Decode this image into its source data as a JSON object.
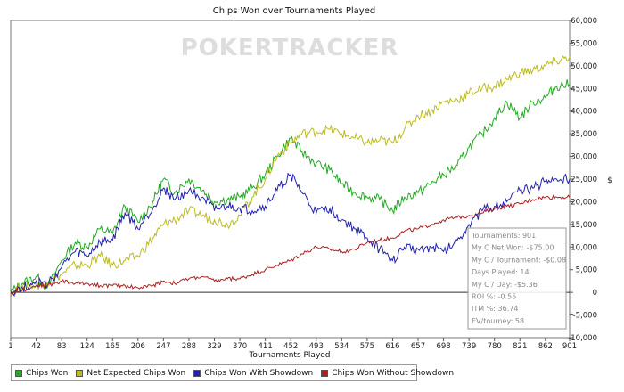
{
  "chart_data": {
    "type": "line",
    "title": "Chips Won over Tournaments Played",
    "xlabel": "Tournaments Played",
    "ylabel": "$",
    "watermark": "POKERTRACKER",
    "x_ticks": [
      1,
      42,
      83,
      124,
      165,
      206,
      247,
      288,
      329,
      370,
      411,
      452,
      493,
      534,
      575,
      616,
      657,
      698,
      739,
      780,
      821,
      862,
      901
    ],
    "xlim": [
      1,
      901
    ],
    "ylim": [
      -10000,
      60000
    ],
    "y_ticks": [
      -10000,
      -5000,
      0,
      5000,
      10000,
      15000,
      20000,
      25000,
      30000,
      35000,
      40000,
      45000,
      50000,
      55000,
      60000
    ],
    "y_tick_labels": [
      "-10,000",
      "-5,000",
      "0",
      "5,000",
      "10,000",
      "15,000",
      "20,000",
      "25,000",
      "30,000",
      "35,000",
      "40,000",
      "45,000",
      "50,000",
      "55,000",
      "60,000"
    ],
    "grid": false,
    "legend_position": "bottom-left",
    "series": [
      {
        "name": "Chips Won",
        "color": "#22aa22",
        "points": [
          [
            1,
            0
          ],
          [
            20,
            2000
          ],
          [
            42,
            3500
          ],
          [
            60,
            1000
          ],
          [
            83,
            7000
          ],
          [
            105,
            11000
          ],
          [
            124,
            10000
          ],
          [
            145,
            14000
          ],
          [
            165,
            13000
          ],
          [
            185,
            19000
          ],
          [
            206,
            15500
          ],
          [
            230,
            20000
          ],
          [
            247,
            25000
          ],
          [
            265,
            22000
          ],
          [
            288,
            25000
          ],
          [
            310,
            22500
          ],
          [
            329,
            20000
          ],
          [
            350,
            20500
          ],
          [
            370,
            21000
          ],
          [
            390,
            23000
          ],
          [
            411,
            26000
          ],
          [
            430,
            30000
          ],
          [
            452,
            34000
          ],
          [
            470,
            31000
          ],
          [
            493,
            28500
          ],
          [
            515,
            27000
          ],
          [
            534,
            24000
          ],
          [
            555,
            22000
          ],
          [
            575,
            21000
          ],
          [
            595,
            20500
          ],
          [
            616,
            18000
          ],
          [
            635,
            21000
          ],
          [
            657,
            22000
          ],
          [
            678,
            24000
          ],
          [
            698,
            26000
          ],
          [
            720,
            28000
          ],
          [
            739,
            32000
          ],
          [
            760,
            35000
          ],
          [
            780,
            38500
          ],
          [
            800,
            42000
          ],
          [
            821,
            38500
          ],
          [
            842,
            42000
          ],
          [
            862,
            43000
          ],
          [
            880,
            45500
          ],
          [
            901,
            46000
          ]
        ]
      },
      {
        "name": "Net Expected Chips Won",
        "color": "#bbbb22",
        "points": [
          [
            1,
            0
          ],
          [
            20,
            1500
          ],
          [
            42,
            1500
          ],
          [
            60,
            2000
          ],
          [
            83,
            4000
          ],
          [
            105,
            6000
          ],
          [
            124,
            6000
          ],
          [
            145,
            8000
          ],
          [
            165,
            6000
          ],
          [
            185,
            7000
          ],
          [
            206,
            8000
          ],
          [
            230,
            12000
          ],
          [
            247,
            15000
          ],
          [
            265,
            16000
          ],
          [
            288,
            18000
          ],
          [
            310,
            17000
          ],
          [
            329,
            16000
          ],
          [
            350,
            15000
          ],
          [
            370,
            17000
          ],
          [
            390,
            21000
          ],
          [
            411,
            25000
          ],
          [
            430,
            30000
          ],
          [
            452,
            33000
          ],
          [
            470,
            35000
          ],
          [
            493,
            35500
          ],
          [
            515,
            36000
          ],
          [
            534,
            35000
          ],
          [
            555,
            34000
          ],
          [
            575,
            33000
          ],
          [
            595,
            33500
          ],
          [
            616,
            33000
          ],
          [
            635,
            36000
          ],
          [
            657,
            39000
          ],
          [
            678,
            40000
          ],
          [
            698,
            42000
          ],
          [
            720,
            42500
          ],
          [
            739,
            44000
          ],
          [
            760,
            45000
          ],
          [
            780,
            45500
          ],
          [
            800,
            47000
          ],
          [
            821,
            48500
          ],
          [
            842,
            49000
          ],
          [
            862,
            50000
          ],
          [
            880,
            51000
          ],
          [
            901,
            52000
          ]
        ]
      },
      {
        "name": "Chips Won With Showdown",
        "color": "#2222aa",
        "points": [
          [
            1,
            0
          ],
          [
            20,
            1000
          ],
          [
            42,
            2500
          ],
          [
            60,
            1500
          ],
          [
            83,
            5500
          ],
          [
            105,
            9000
          ],
          [
            124,
            8000
          ],
          [
            145,
            11000
          ],
          [
            165,
            11500
          ],
          [
            185,
            17500
          ],
          [
            206,
            14000
          ],
          [
            230,
            18500
          ],
          [
            247,
            23000
          ],
          [
            265,
            20500
          ],
          [
            288,
            22500
          ],
          [
            310,
            21000
          ],
          [
            329,
            18000
          ],
          [
            350,
            19000
          ],
          [
            370,
            18500
          ],
          [
            390,
            18000
          ],
          [
            411,
            19000
          ],
          [
            430,
            22500
          ],
          [
            452,
            26000
          ],
          [
            470,
            22000
          ],
          [
            493,
            17500
          ],
          [
            515,
            18500
          ],
          [
            534,
            16000
          ],
          [
            555,
            14000
          ],
          [
            575,
            12000
          ],
          [
            595,
            9500
          ],
          [
            616,
            7000
          ],
          [
            635,
            10000
          ],
          [
            657,
            9500
          ],
          [
            678,
            10000
          ],
          [
            698,
            9000
          ],
          [
            720,
            11500
          ],
          [
            739,
            15000
          ],
          [
            760,
            18000
          ],
          [
            780,
            19000
          ],
          [
            800,
            20000
          ],
          [
            821,
            22500
          ],
          [
            842,
            23000
          ],
          [
            862,
            24500
          ],
          [
            880,
            25000
          ],
          [
            901,
            25000
          ]
        ]
      },
      {
        "name": "Chips Won Without Showdown",
        "color": "#aa2222",
        "points": [
          [
            1,
            0
          ],
          [
            20,
            500
          ],
          [
            42,
            1500
          ],
          [
            60,
            1500
          ],
          [
            83,
            2500
          ],
          [
            105,
            2000
          ],
          [
            124,
            2000
          ],
          [
            145,
            1500
          ],
          [
            165,
            1500
          ],
          [
            185,
            1500
          ],
          [
            206,
            1000
          ],
          [
            230,
            1500
          ],
          [
            247,
            2500
          ],
          [
            265,
            2000
          ],
          [
            288,
            3000
          ],
          [
            310,
            3500
          ],
          [
            329,
            2500
          ],
          [
            350,
            3000
          ],
          [
            370,
            3000
          ],
          [
            390,
            4000
          ],
          [
            411,
            5000
          ],
          [
            430,
            6000
          ],
          [
            452,
            7000
          ],
          [
            470,
            8500
          ],
          [
            493,
            10000
          ],
          [
            515,
            9500
          ],
          [
            534,
            9000
          ],
          [
            555,
            9500
          ],
          [
            575,
            11000
          ],
          [
            595,
            11500
          ],
          [
            616,
            12000
          ],
          [
            635,
            13500
          ],
          [
            657,
            14000
          ],
          [
            678,
            15000
          ],
          [
            698,
            16000
          ],
          [
            720,
            16500
          ],
          [
            739,
            17000
          ],
          [
            760,
            17500
          ],
          [
            780,
            18500
          ],
          [
            800,
            19000
          ],
          [
            821,
            19500
          ],
          [
            842,
            20500
          ],
          [
            862,
            21000
          ],
          [
            880,
            21000
          ],
          [
            901,
            21000
          ]
        ]
      }
    ],
    "tooltip": {
      "lines": [
        "Tournaments: 901",
        "My C Net Won: -$75.00",
        "My C / Tournament: -$0.08",
        "Days Played: 14",
        "My C / Day: -$5.36",
        "ROI %: -0.55",
        "ITM %: 36.74",
        "EV/tourney: 58"
      ]
    }
  }
}
